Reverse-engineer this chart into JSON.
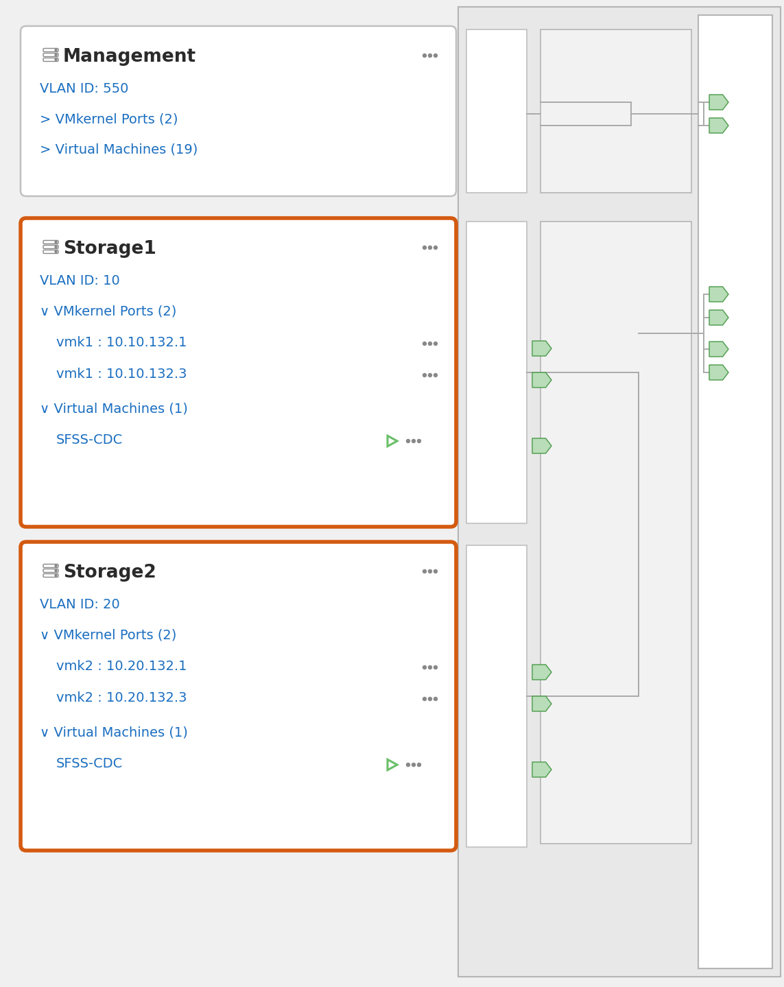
{
  "bg_color": "#f0f0f0",
  "panel_bg": "#ffffff",
  "outer_panel_bg": "#e8e8e8",
  "inner_panel_bg": "#f2f2f2",
  "far_right_bg": "#e0e0e0",
  "border_color": "#b0b0b0",
  "highlight_color": "#d45a10",
  "green_color": "#6abf69",
  "green_edge": "#4a9a4a",
  "green_light_fill": "#b8ddb8",
  "text_dark": "#2a2a2a",
  "blue_text": "#1a6ec0",
  "gray_text": "#777777",
  "dot_color": "#888888",
  "management": {
    "title": "Management",
    "vlan": "VLAN ID: 550",
    "vmkernel": "> VMkernel Ports (2)",
    "vms": "> Virtual Machines (19)"
  },
  "storage1": {
    "title": "Storage1",
    "vlan": "VLAN ID: 10",
    "vmkernel_header": "∨ VMkernel Ports (2)",
    "vmk1": "vmk1 : 10.10.132.1",
    "vmk2": "vmk1 : 10.10.132.3",
    "vm_header": "∨ Virtual Machines (1)",
    "vm_name": "SFSS-CDC"
  },
  "storage2": {
    "title": "Storage2",
    "vlan": "VLAN ID: 20",
    "vmkernel_header": "∨ VMkernel Ports (2)",
    "vmk1": "vmk2 : 10.20.132.1",
    "vmk2": "vmk2 : 10.20.132.3",
    "vm_header": "∨ Virtual Machines (1)",
    "vm_name": "SFSS-CDC"
  },
  "figw": 11.43,
  "figh": 14.39,
  "dpi": 100
}
